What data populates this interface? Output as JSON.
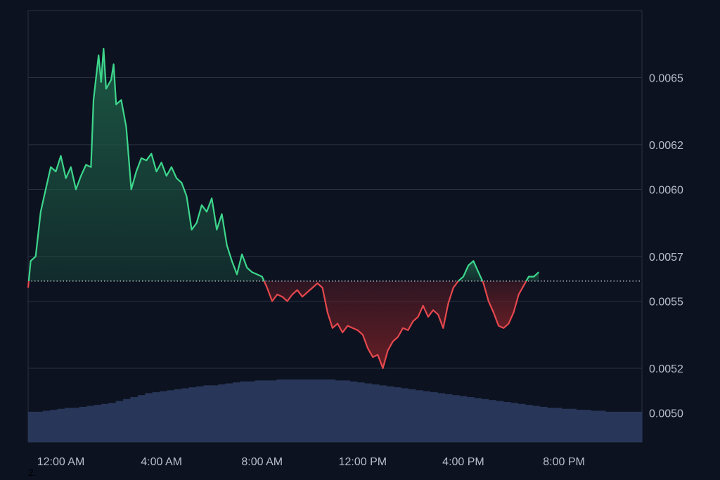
{
  "chart_data": {
    "type": "area",
    "title": "",
    "xlabel": "",
    "ylabel": "",
    "baseline": 0.00559,
    "ylim": [
      0.00487,
      0.0068
    ],
    "xlim": [
      -1.3,
      23.1
    ],
    "x_ticks": [
      {
        "x": 0,
        "label": "12:00 AM"
      },
      {
        "x": 4,
        "label": "4:00 AM"
      },
      {
        "x": 8,
        "label": "8:00 AM"
      },
      {
        "x": 12,
        "label": "12:00 PM"
      },
      {
        "x": 16,
        "label": "4:00 PM"
      },
      {
        "x": 20,
        "label": "8:00 PM"
      }
    ],
    "y_ticks": [
      {
        "y": 0.0065,
        "label": "0.0065"
      },
      {
        "y": 0.0062,
        "label": "0.0062"
      },
      {
        "y": 0.006,
        "label": "0.0060"
      },
      {
        "y": 0.0057,
        "label": "0.0057"
      },
      {
        "y": 0.0055,
        "label": "0.0055"
      },
      {
        "y": 0.0052,
        "label": "0.0052"
      },
      {
        "y": 0.005,
        "label": "0.0050"
      }
    ],
    "grid": true,
    "legend": "none",
    "colors": {
      "background": "#0d1220",
      "up": "#3dd68c",
      "down": "#e5484d",
      "up_fill": "#1c5a44",
      "down_fill": "#6a1e26",
      "grid": "#2a3345",
      "volume": "#283759",
      "baseline": "#d8dce4"
    },
    "series": [
      {
        "values": [
          [
            -1.3,
            0.00556
          ],
          [
            -1.2,
            0.00568
          ],
          [
            -1.0,
            0.0057
          ],
          [
            -0.8,
            0.0059
          ],
          [
            -0.6,
            0.006
          ],
          [
            -0.4,
            0.0061
          ],
          [
            -0.2,
            0.00608
          ],
          [
            0.0,
            0.00615
          ],
          [
            0.2,
            0.00605
          ],
          [
            0.4,
            0.0061
          ],
          [
            0.6,
            0.006
          ],
          [
            0.8,
            0.00606
          ],
          [
            1.0,
            0.00611
          ],
          [
            1.2,
            0.0061
          ],
          [
            1.3,
            0.0064
          ],
          [
            1.5,
            0.0066
          ],
          [
            1.6,
            0.00648
          ],
          [
            1.7,
            0.00663
          ],
          [
            1.8,
            0.00645
          ],
          [
            2.0,
            0.00649
          ],
          [
            2.1,
            0.00656
          ],
          [
            2.2,
            0.00638
          ],
          [
            2.4,
            0.0064
          ],
          [
            2.6,
            0.00628
          ],
          [
            2.8,
            0.006
          ],
          [
            3.0,
            0.00608
          ],
          [
            3.2,
            0.00614
          ],
          [
            3.4,
            0.00613
          ],
          [
            3.6,
            0.00616
          ],
          [
            3.8,
            0.00608
          ],
          [
            4.0,
            0.00612
          ],
          [
            4.2,
            0.00606
          ],
          [
            4.4,
            0.0061
          ],
          [
            4.6,
            0.00605
          ],
          [
            4.8,
            0.00603
          ],
          [
            5.0,
            0.00597
          ],
          [
            5.2,
            0.00582
          ],
          [
            5.4,
            0.00585
          ],
          [
            5.6,
            0.00593
          ],
          [
            5.8,
            0.0059
          ],
          [
            6.0,
            0.00596
          ],
          [
            6.2,
            0.00582
          ],
          [
            6.4,
            0.00589
          ],
          [
            6.6,
            0.00575
          ],
          [
            6.8,
            0.00568
          ],
          [
            7.0,
            0.00562
          ],
          [
            7.2,
            0.00571
          ],
          [
            7.4,
            0.00565
          ],
          [
            7.6,
            0.00563
          ],
          [
            7.8,
            0.00562
          ],
          [
            8.0,
            0.00561
          ],
          [
            8.2,
            0.00556
          ],
          [
            8.4,
            0.0055
          ],
          [
            8.6,
            0.00553
          ],
          [
            8.8,
            0.00552
          ],
          [
            9.0,
            0.0055
          ],
          [
            9.2,
            0.00553
          ],
          [
            9.4,
            0.00555
          ],
          [
            9.6,
            0.00552
          ],
          [
            9.8,
            0.00554
          ],
          [
            10.0,
            0.00556
          ],
          [
            10.2,
            0.00558
          ],
          [
            10.4,
            0.00556
          ],
          [
            10.6,
            0.00545
          ],
          [
            10.8,
            0.00538
          ],
          [
            11.0,
            0.0054
          ],
          [
            11.2,
            0.00536
          ],
          [
            11.4,
            0.00539
          ],
          [
            11.6,
            0.00538
          ],
          [
            11.8,
            0.00537
          ],
          [
            12.0,
            0.00535
          ],
          [
            12.2,
            0.00529
          ],
          [
            12.4,
            0.00525
          ],
          [
            12.6,
            0.00526
          ],
          [
            12.8,
            0.0052
          ],
          [
            13.0,
            0.00528
          ],
          [
            13.2,
            0.00532
          ],
          [
            13.4,
            0.00534
          ],
          [
            13.6,
            0.00538
          ],
          [
            13.8,
            0.00537
          ],
          [
            14.0,
            0.00541
          ],
          [
            14.2,
            0.00543
          ],
          [
            14.4,
            0.00548
          ],
          [
            14.6,
            0.00543
          ],
          [
            14.8,
            0.00546
          ],
          [
            15.0,
            0.00544
          ],
          [
            15.2,
            0.00538
          ],
          [
            15.4,
            0.00549
          ],
          [
            15.6,
            0.00556
          ],
          [
            15.8,
            0.00559
          ],
          [
            16.0,
            0.00561
          ],
          [
            16.2,
            0.00566
          ],
          [
            16.4,
            0.00568
          ],
          [
            16.6,
            0.00563
          ],
          [
            16.8,
            0.00558
          ],
          [
            17.0,
            0.0055
          ],
          [
            17.2,
            0.00545
          ],
          [
            17.4,
            0.00539
          ],
          [
            17.6,
            0.00538
          ],
          [
            17.8,
            0.0054
          ],
          [
            18.0,
            0.00545
          ],
          [
            18.2,
            0.00553
          ],
          [
            18.4,
            0.00557
          ],
          [
            18.6,
            0.00561
          ],
          [
            18.8,
            0.00561
          ],
          [
            19.0,
            0.00563
          ]
        ]
      }
    ],
    "volume": [
      0.31,
      0.31,
      0.32,
      0.33,
      0.34,
      0.35,
      0.35,
      0.36,
      0.37,
      0.38,
      0.39,
      0.4,
      0.42,
      0.44,
      0.46,
      0.48,
      0.5,
      0.51,
      0.52,
      0.53,
      0.54,
      0.55,
      0.56,
      0.57,
      0.58,
      0.58,
      0.59,
      0.6,
      0.61,
      0.62,
      0.62,
      0.63,
      0.63,
      0.63,
      0.64,
      0.64,
      0.64,
      0.64,
      0.64,
      0.64,
      0.64,
      0.64,
      0.63,
      0.63,
      0.62,
      0.61,
      0.6,
      0.59,
      0.58,
      0.57,
      0.56,
      0.55,
      0.54,
      0.53,
      0.52,
      0.51,
      0.5,
      0.49,
      0.48,
      0.47,
      0.46,
      0.45,
      0.44,
      0.43,
      0.42,
      0.41,
      0.4,
      0.39,
      0.38,
      0.37,
      0.36,
      0.35,
      0.35,
      0.34,
      0.34,
      0.33,
      0.33,
      0.32,
      0.32,
      0.31,
      0.31,
      0.31,
      0.31,
      0.31
    ]
  },
  "footnote": "2."
}
